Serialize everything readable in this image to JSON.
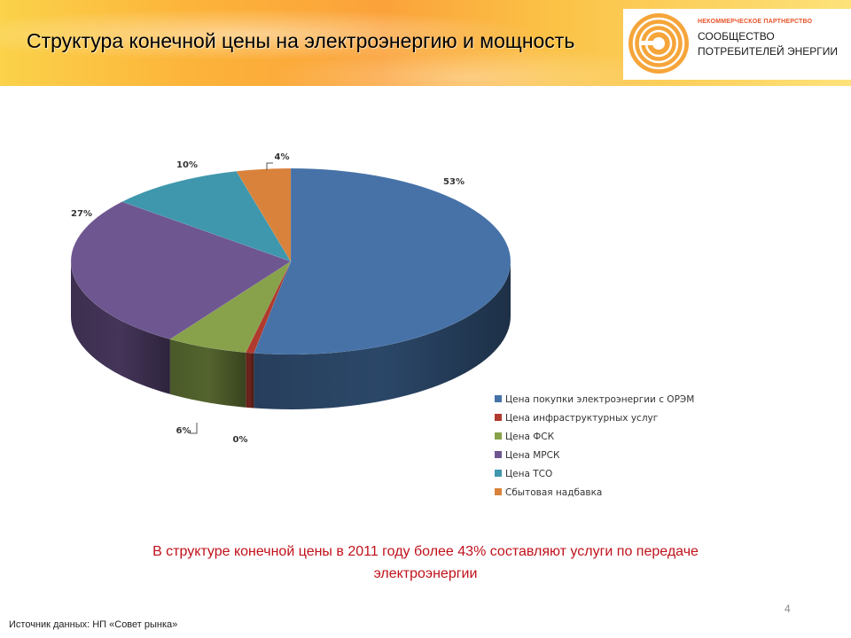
{
  "header": {
    "title": "Структура  конечной цены на электроэнергию и мощность",
    "logo": {
      "small_caption": "НЕКОММЕРЧЕСКОЕ ПАРТНЕРСТВО",
      "line1": "СООБЩЕСТВО",
      "line2": "ПОТРЕБИТЕЛЕЙ ЭНЕРГИИ"
    }
  },
  "chart_data": {
    "type": "pie",
    "title": "",
    "style": "3d",
    "legend_position": "right",
    "categories": [
      "Цена покупки электроэнергии с ОРЭМ",
      "Цена инфраструктурных услуг",
      "Цена ФСК",
      "Цена МРСК",
      "Цена ТСО",
      "Сбытовая надбавка"
    ],
    "values": [
      53,
      0,
      6,
      27,
      10,
      4
    ],
    "value_labels": [
      "53%",
      "0%",
      "6%",
      "27%",
      "10%",
      "4%"
    ],
    "colors": [
      "#4672a8",
      "#b03a2e",
      "#87a24a",
      "#6e5690",
      "#3f97ad",
      "#d9823b"
    ]
  },
  "conclusion": {
    "line1": "В структуре конечной цены в 2011 году  более 43% составляют услуги по передаче",
    "line2": "электроэнергии"
  },
  "page_number": "4",
  "source": "Источник данных: НП «Совет рынка»"
}
